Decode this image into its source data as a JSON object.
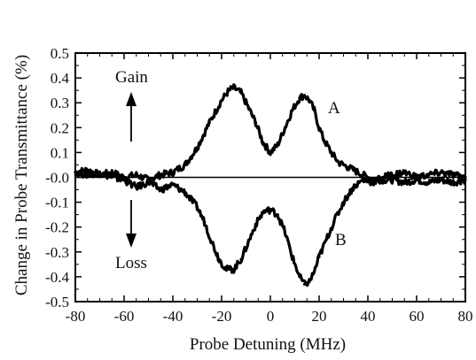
{
  "chart_data": {
    "type": "line",
    "title": "",
    "xlabel": "Probe Detuning (MHz)",
    "ylabel": "Change in Probe Transmittance (%)",
    "xlim": [
      -80,
      80
    ],
    "ylim": [
      -0.5,
      0.5
    ],
    "x_ticks": [
      -80,
      -60,
      -40,
      -20,
      0,
      20,
      40,
      60,
      80
    ],
    "y_ticks": [
      0.5,
      0.4,
      0.3,
      0.2,
      0.1,
      0.0,
      -0.1,
      -0.2,
      -0.3,
      -0.4,
      -0.5
    ],
    "x_tick_labels": [
      "-80",
      "-60",
      "-40",
      "-20",
      "0",
      "20",
      "40",
      "60",
      "80"
    ],
    "y_tick_labels": [
      "0.5",
      "0.4",
      "0.3",
      "0.2",
      "0.1",
      "-0.0",
      "-0.1",
      "-0.2",
      "-0.3",
      "-0.4",
      "-0.5"
    ],
    "grid": false,
    "zero_line": true,
    "series": [
      {
        "name": "A",
        "x": [
          -80,
          -75,
          -70,
          -65,
          -60,
          -55,
          -50,
          -45,
          -40,
          -35,
          -30,
          -25,
          -20,
          -17,
          -15,
          -12,
          -10,
          -6,
          -3,
          0,
          3,
          6,
          9,
          12,
          14,
          16,
          18,
          20,
          22,
          25,
          28,
          32,
          36,
          40,
          45,
          50,
          55,
          60,
          65,
          70,
          75,
          80
        ],
        "y": [
          0.02,
          0.03,
          0.01,
          0.02,
          0.0,
          0.01,
          -0.01,
          0.01,
          0.02,
          0.05,
          0.12,
          0.22,
          0.31,
          0.35,
          0.36,
          0.34,
          0.3,
          0.22,
          0.14,
          0.1,
          0.13,
          0.2,
          0.27,
          0.32,
          0.33,
          0.31,
          0.27,
          0.2,
          0.15,
          0.1,
          0.06,
          0.04,
          0.02,
          0.0,
          -0.01,
          -0.01,
          -0.02,
          -0.01,
          -0.02,
          -0.01,
          -0.02,
          -0.01
        ]
      },
      {
        "name": "B",
        "x": [
          -80,
          -75,
          -70,
          -65,
          -60,
          -55,
          -50,
          -45,
          -40,
          -35,
          -30,
          -27,
          -24,
          -21,
          -18,
          -15,
          -12,
          -9,
          -6,
          -3,
          0,
          3,
          6,
          9,
          12,
          14,
          16,
          18,
          20,
          23,
          26,
          30,
          34,
          38,
          42,
          46,
          50,
          55,
          60,
          65,
          70,
          75,
          80
        ],
        "y": [
          0.02,
          0.01,
          0.02,
          0.0,
          -0.01,
          -0.04,
          -0.02,
          -0.05,
          -0.03,
          -0.06,
          -0.12,
          -0.18,
          -0.26,
          -0.33,
          -0.37,
          -0.37,
          -0.33,
          -0.26,
          -0.19,
          -0.14,
          -0.13,
          -0.15,
          -0.22,
          -0.32,
          -0.4,
          -0.43,
          -0.42,
          -0.38,
          -0.32,
          -0.25,
          -0.18,
          -0.1,
          -0.04,
          -0.01,
          -0.02,
          0.0,
          0.01,
          0.02,
          0.0,
          0.01,
          0.02,
          0.01,
          0.0
        ]
      }
    ],
    "annotations": {
      "gain": "Gain",
      "loss": "Loss",
      "label_a": "A",
      "label_b": "B"
    }
  }
}
